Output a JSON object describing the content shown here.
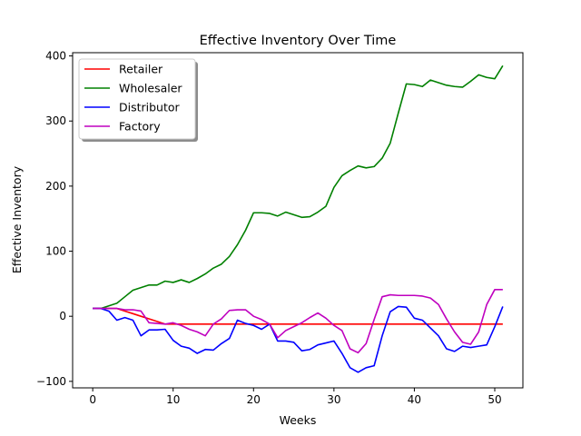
{
  "chart_data": {
    "type": "line",
    "title": "Effective Inventory Over Time",
    "xlabel": "Weeks",
    "ylabel": "Effective Inventory",
    "xlim": [
      -2.5,
      53.5
    ],
    "ylim": [
      -110,
      405
    ],
    "xticks": [
      0,
      10,
      20,
      30,
      40,
      50
    ],
    "yticks": [
      -100,
      0,
      100,
      200,
      300,
      400
    ],
    "grid": false,
    "legend_position": "top-left",
    "x": [
      0,
      1,
      2,
      3,
      4,
      5,
      6,
      7,
      8,
      9,
      10,
      11,
      12,
      13,
      14,
      15,
      16,
      17,
      18,
      19,
      20,
      21,
      22,
      23,
      24,
      25,
      26,
      27,
      28,
      29,
      30,
      31,
      32,
      33,
      34,
      35,
      36,
      37,
      38,
      39,
      40,
      41,
      42,
      43,
      44,
      45,
      46,
      47,
      48,
      49,
      50,
      51
    ],
    "series": [
      {
        "name": "Retailer",
        "color": "#ff0000",
        "values": [
          12,
          12,
          12,
          12,
          8,
          4,
          0,
          -4,
          -8,
          -12,
          -12,
          -12,
          -12,
          -12,
          -12,
          -12,
          -12,
          -12,
          -12,
          -12,
          -12,
          -12,
          -12,
          -12,
          -12,
          -12,
          -12,
          -12,
          -12,
          -12,
          -12,
          -12,
          -12,
          -12,
          -12,
          -12,
          -12,
          -12,
          -12,
          -12,
          -12,
          -12,
          -12,
          -12,
          -12,
          -12,
          -12,
          -12,
          -12,
          -12,
          -12,
          -12
        ]
      },
      {
        "name": "Wholesaler",
        "color": "#008000",
        "values": [
          12,
          12,
          16,
          20,
          30,
          40,
          44,
          48,
          48,
          54,
          52,
          56,
          52,
          58,
          65,
          74,
          80,
          92,
          110,
          132,
          159,
          159,
          158,
          154,
          160,
          156,
          152,
          153,
          160,
          169,
          198,
          216,
          224,
          231,
          228,
          230,
          243,
          266,
          312,
          357,
          356,
          353,
          363,
          359,
          355,
          353,
          352,
          361,
          371,
          367,
          365,
          385
        ]
      },
      {
        "name": "Distributor",
        "color": "#0000ff",
        "values": [
          12,
          12,
          8,
          -6,
          -2,
          -6,
          -30,
          -21,
          -21,
          -20,
          -37,
          -46,
          -49,
          -57,
          -51,
          -52,
          -42,
          -34,
          -6,
          -11,
          -14,
          -20,
          -12,
          -38,
          -38,
          -40,
          -53,
          -51,
          -44,
          -41,
          -38,
          -57,
          -79,
          -86,
          -79,
          -76,
          -30,
          7,
          15,
          14,
          -3,
          -6,
          -18,
          -30,
          -50,
          -54,
          -46,
          -48,
          -46,
          -44,
          -16,
          15
        ]
      },
      {
        "name": "Factory",
        "color": "#bf00bf",
        "values": [
          12,
          12,
          12,
          12,
          10,
          10,
          8,
          -10,
          -11,
          -12,
          -10,
          -14,
          -20,
          -24,
          -30,
          -12,
          -4,
          9,
          10,
          10,
          0,
          -5,
          -12,
          -33,
          -22,
          -16,
          -10,
          -2,
          5,
          -3,
          -14,
          -22,
          -50,
          -56,
          -42,
          -5,
          30,
          33,
          32,
          32,
          32,
          31,
          28,
          18,
          -4,
          -24,
          -40,
          -43,
          -24,
          18,
          41,
          41
        ]
      }
    ]
  }
}
